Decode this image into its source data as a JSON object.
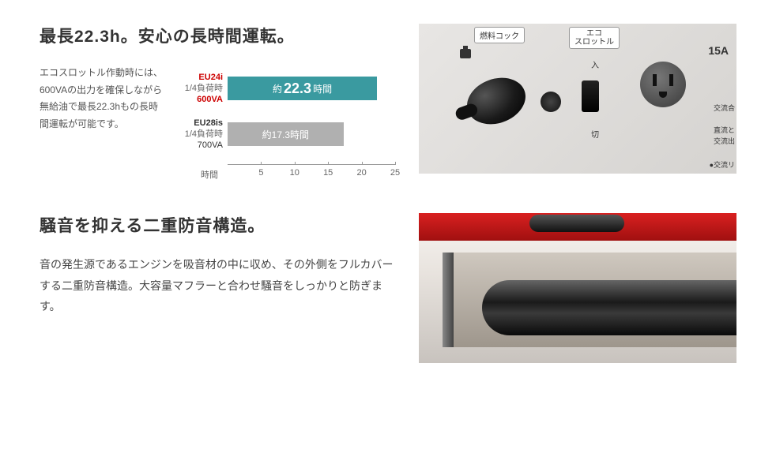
{
  "section1": {
    "heading": "最長22.3h。安心の長時間運転。",
    "intro": "エコスロットル作動時には、600VAの出力を確保しながら無給油で最長22.3hもの長時間運転が可能です。",
    "chart": {
      "type": "bar",
      "axis_label": "時間",
      "xlim": [
        0,
        25
      ],
      "ticks": [
        5,
        10,
        15,
        20,
        25
      ],
      "bars": [
        {
          "model": "EU24i",
          "sub": "1/4負荷時",
          "va": "600VA",
          "value": 22.3,
          "label_prefix": "約",
          "label_value": "22.3",
          "label_suffix": "時間",
          "color": "#3a9aa0",
          "highlight": true
        },
        {
          "model": "EU28is",
          "sub": "1/4負荷時",
          "va": "700VA",
          "value": 17.3,
          "label_prefix": "約",
          "label_value": "17.3",
          "label_suffix": "時間",
          "color": "#b0b0b0",
          "highlight": false
        }
      ]
    },
    "panel": {
      "sticker_fuel": "燃料コック",
      "sticker_eco": "エコ\nスロットル",
      "amps": "15A",
      "on": "入",
      "off": "切",
      "side1": "交流合",
      "side2": "直流と",
      "side3": "交流出",
      "side4": "●交流リ"
    }
  },
  "section2": {
    "heading": "騒音を抑える二重防音構造。",
    "body": "音の発生源であるエンジンを吸音材の中に収め、その外側をフルカバーする二重防音構造。大容量マフラーと合わせ騒音をしっかりと防ぎます。"
  },
  "colors": {
    "bar_accent": "#3a9aa0",
    "bar_neutral": "#b0b0b0",
    "text_red": "#c00000"
  }
}
